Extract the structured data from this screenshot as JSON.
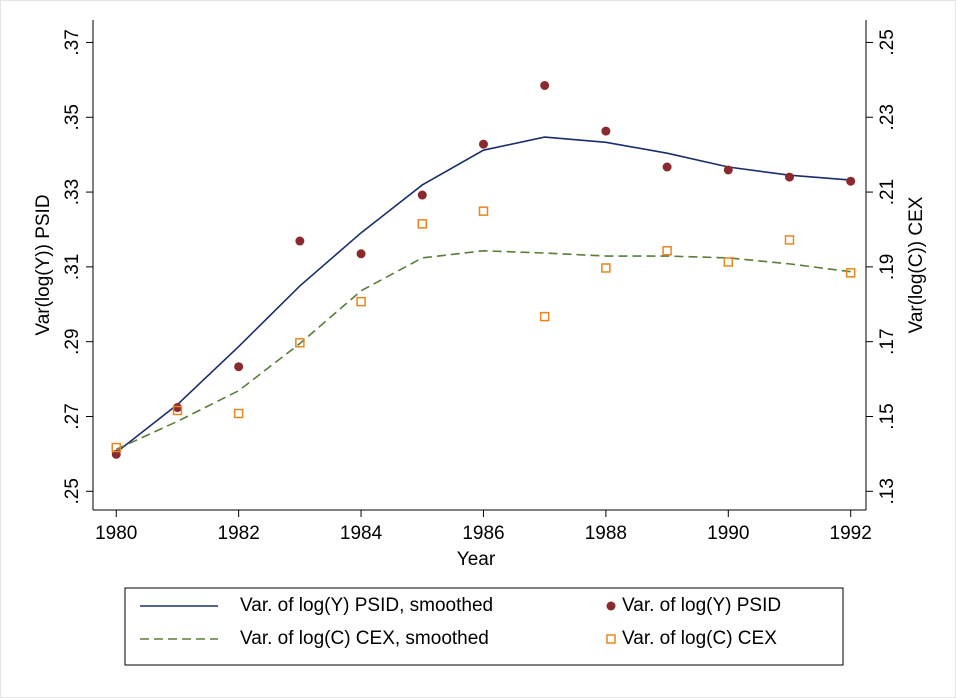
{
  "chart_data": {
    "type": "line",
    "x_label": "Year",
    "y_label": "Var(log(Y)) PSID",
    "y2_label": "Var(log(C)) CEX",
    "x": [
      1980,
      1981,
      1982,
      1983,
      1984,
      1985,
      1986,
      1987,
      1988,
      1989,
      1990,
      1991,
      1992
    ],
    "xlim": [
      1979.62,
      1992.25
    ],
    "xticks": [
      1980,
      1982,
      1984,
      1986,
      1988,
      1990,
      1992
    ],
    "ylim": [
      0.245,
      0.376
    ],
    "yticks": [
      {
        "value": 0.25,
        "label": ".25"
      },
      {
        "value": 0.27,
        "label": ".27"
      },
      {
        "value": 0.29,
        "label": ".29"
      },
      {
        "value": 0.31,
        "label": ".31"
      },
      {
        "value": 0.33,
        "label": ".33"
      },
      {
        "value": 0.35,
        "label": ".35"
      },
      {
        "value": 0.37,
        "label": ".37"
      }
    ],
    "y2lim": [
      0.125,
      0.256
    ],
    "y2ticks": [
      {
        "value": 0.13,
        "label": ".13"
      },
      {
        "value": 0.15,
        "label": ".15"
      },
      {
        "value": 0.17,
        "label": ".17"
      },
      {
        "value": 0.19,
        "label": ".19"
      },
      {
        "value": 0.21,
        "label": ".21"
      },
      {
        "value": 0.23,
        "label": ".23"
      },
      {
        "value": 0.25,
        "label": ".25"
      }
    ],
    "grid": false,
    "legend_position": "bottom",
    "series": [
      {
        "name": "Var. of log(Y) PSID, smoothed",
        "color": "#1a2e6b",
        "mode": "line",
        "dashed": false,
        "values": [
          0.2604,
          0.2732,
          0.2887,
          0.3049,
          0.3191,
          0.3319,
          0.3412,
          0.3447,
          0.3433,
          0.3404,
          0.3367,
          0.3345,
          0.3332
        ]
      },
      {
        "name": "Var. of log(Y) PSID",
        "color": "#8b2a2e",
        "mode": "circle",
        "values": [
          0.2599,
          0.2724,
          0.2833,
          0.3169,
          0.3135,
          0.3292,
          0.3428,
          0.3585,
          0.3463,
          0.3367,
          0.3359,
          0.334,
          0.3329
        ]
      },
      {
        "name": "Var. of log(C) CEX, smoothed",
        "color": "#5a7d3a",
        "mode": "line",
        "dashed": true,
        "axis": "y2",
        "values": [
          0.1412,
          0.1487,
          0.1569,
          0.1695,
          0.1836,
          0.1924,
          0.1943,
          0.1937,
          0.1929,
          0.1929,
          0.1924,
          0.1908,
          0.1887
        ]
      },
      {
        "name": "Var. of log(C) CEX",
        "color": "#e8871e",
        "mode": "square",
        "axis": "y2",
        "values": [
          0.1417,
          0.1516,
          0.1508,
          0.1697,
          0.1807,
          0.2015,
          0.2049,
          0.1767,
          0.1897,
          0.1943,
          0.1913,
          0.1972,
          0.1884
        ]
      }
    ]
  }
}
